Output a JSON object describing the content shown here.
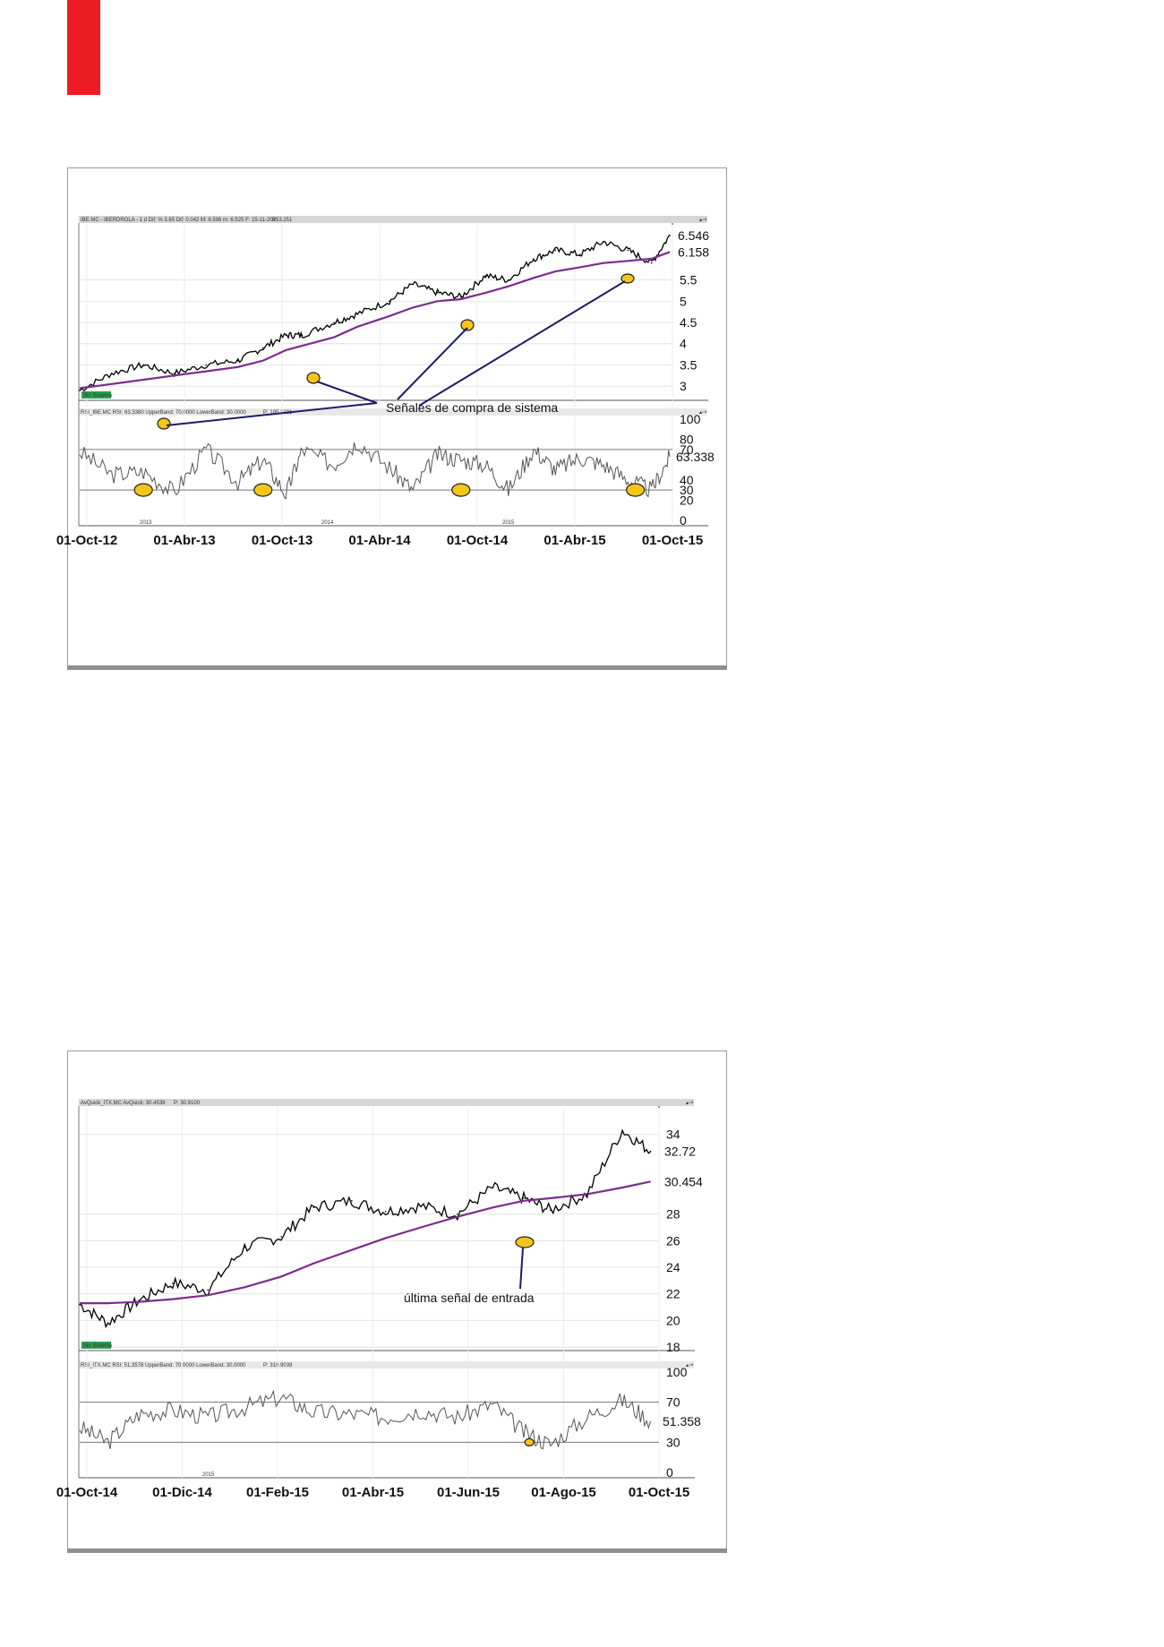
{
  "colors": {
    "accent_red": "#ec1c24",
    "price": "#000000",
    "moving_average": "#7b2d8e",
    "rsi": "#555555",
    "rsi_overbought": "#5b8fd0",
    "marker_fill": "#f5c518",
    "arrow": "#1d1d6b",
    "badge": "#2e9e4f",
    "last_ma_label": "#7b2d8e",
    "last_rsi_label_1": "#3b8fd0",
    "last_rsi_label_2": "#e07020"
  },
  "charts": [
    {
      "header": "IBE.MC - IBERDROLA - 1 d Dif: % 3.65 Dif: 0.042 M: 6.596 m: 6.525 F: 15-11-2015",
      "header_red": "P: 3.251",
      "rsi_header": "RSI_IBE.MC RSI: 63.3380 UpperBand: 70.0000 LowerBand: 30.0000",
      "rsi_header_red": "P: 195.2191",
      "badge": "Sin Sistema",
      "annotation": "Señales de compra de sistema",
      "year_markers": [
        "2013",
        "2014",
        "2015"
      ],
      "last_price_label": "6.546",
      "ma_label": "6.158",
      "rsi_label": "63.338",
      "price_ticks": [
        "3",
        "3.5",
        "4",
        "4.5",
        "5",
        "5.5"
      ],
      "rsi_ticks": [
        "0",
        "20",
        "30",
        "40",
        "70",
        "80",
        "100"
      ],
      "x_ticks": [
        "01-Oct-12",
        "01-Abr-13",
        "01-Oct-13",
        "01-Abr-14",
        "01-Oct-14",
        "01-Abr-15",
        "01-Oct-15"
      ]
    },
    {
      "header": "AvQuick_ITX.MC AvQuick: 30.4539",
      "header_red": "P: 30.9100",
      "rsi_header": "RSI_ITX.MC RSI: 51.3578 UpperBand: 70.0000 LowerBand: 30.0000",
      "rsi_header_red": "P: 319.9039",
      "badge": "Sin Sistema",
      "annotation": "última señal de entrada",
      "year_markers": [
        "2015"
      ],
      "last_price_label": "32.72",
      "ma_label": "30.454",
      "rsi_label": "51.358",
      "price_ticks": [
        "18",
        "20",
        "22",
        "24",
        "26",
        "28",
        "34"
      ],
      "rsi_ticks": [
        "0",
        "30",
        "70",
        "100"
      ],
      "x_ticks": [
        "01-Oct-14",
        "01-Dic-14",
        "01-Feb-15",
        "01-Abr-15",
        "01-Jun-15",
        "01-Ago-15",
        "01-Oct-15"
      ]
    }
  ],
  "chart_data": [
    {
      "type": "line",
      "x": [
        "2012-09-15",
        "2012-11-15",
        "2013-01-15",
        "2013-03-15",
        "2013-05-15",
        "2013-07-15",
        "2013-09-01",
        "2013-10-15",
        "2013-11-15",
        "2014-01-15",
        "2014-03-01",
        "2014-05-01",
        "2014-06-15",
        "2014-08-01",
        "2014-09-15",
        "2014-11-01",
        "2014-12-15",
        "2015-02-01",
        "2015-03-15",
        "2015-05-01",
        "2015-06-15",
        "2015-08-01",
        "2015-09-15",
        "2015-10-20"
      ],
      "series": [
        {
          "values": [
            2.9,
            3.3,
            3.5,
            3.3,
            3.5,
            3.6,
            3.9,
            4.2,
            4.2,
            4.5,
            4.7,
            5.0,
            5.4,
            5.2,
            5.1,
            5.6,
            5.5,
            6.0,
            6.2,
            6.1,
            6.4,
            6.2,
            5.9,
            6.55
          ]
        },
        {
          "values": [
            2.95,
            3.05,
            3.15,
            3.25,
            3.35,
            3.45,
            3.6,
            3.85,
            3.95,
            4.15,
            4.4,
            4.65,
            4.85,
            5.0,
            5.05,
            5.2,
            5.35,
            5.55,
            5.7,
            5.8,
            5.9,
            5.95,
            6.0,
            6.16
          ]
        }
      ],
      "rsi": [
        68,
        45,
        48,
        28,
        70,
        38,
        60,
        26,
        70,
        55,
        78,
        52,
        30,
        65,
        60,
        55,
        30,
        70,
        50,
        62,
        55,
        40,
        30,
        63
      ],
      "rsi_markers": [
        "2013-01-15",
        "2013-09-01",
        "2014-09-15",
        "2015-08-15"
      ],
      "ylim": [
        2.75,
        6.8
      ],
      "rsi_ylim": [
        0,
        100
      ]
    },
    {
      "type": "line",
      "x": [
        "2014-09-20",
        "2014-10-10",
        "2014-11-01",
        "2014-11-25",
        "2014-12-20",
        "2015-01-15",
        "2015-02-10",
        "2015-03-05",
        "2015-04-01",
        "2015-04-25",
        "2015-05-20",
        "2015-06-15",
        "2015-07-10",
        "2015-08-01",
        "2015-08-20",
        "2015-09-15",
        "2015-10-10",
        "2015-10-30"
      ],
      "series": [
        {
          "values": [
            21.2,
            19.8,
            21.5,
            22.8,
            22.3,
            25.5,
            26.3,
            28.5,
            29.0,
            28.2,
            28.6,
            28.0,
            30.0,
            29.2,
            28.3,
            29.5,
            34.3,
            32.72
          ]
        },
        {
          "values": [
            21.3,
            21.3,
            21.4,
            21.6,
            21.9,
            22.5,
            23.3,
            24.3,
            25.3,
            26.2,
            27.0,
            27.8,
            28.5,
            29.0,
            29.2,
            29.5,
            30.0,
            30.454
          ]
        }
      ],
      "rsi": [
        45,
        30,
        58,
        62,
        55,
        65,
        75,
        60,
        58,
        55,
        62,
        55,
        68,
        40,
        28,
        55,
        72,
        51
      ],
      "rsi_markers": [
        "2015-08-05"
      ],
      "ylim": [
        18,
        36
      ],
      "rsi_ylim": [
        0,
        100
      ]
    }
  ]
}
